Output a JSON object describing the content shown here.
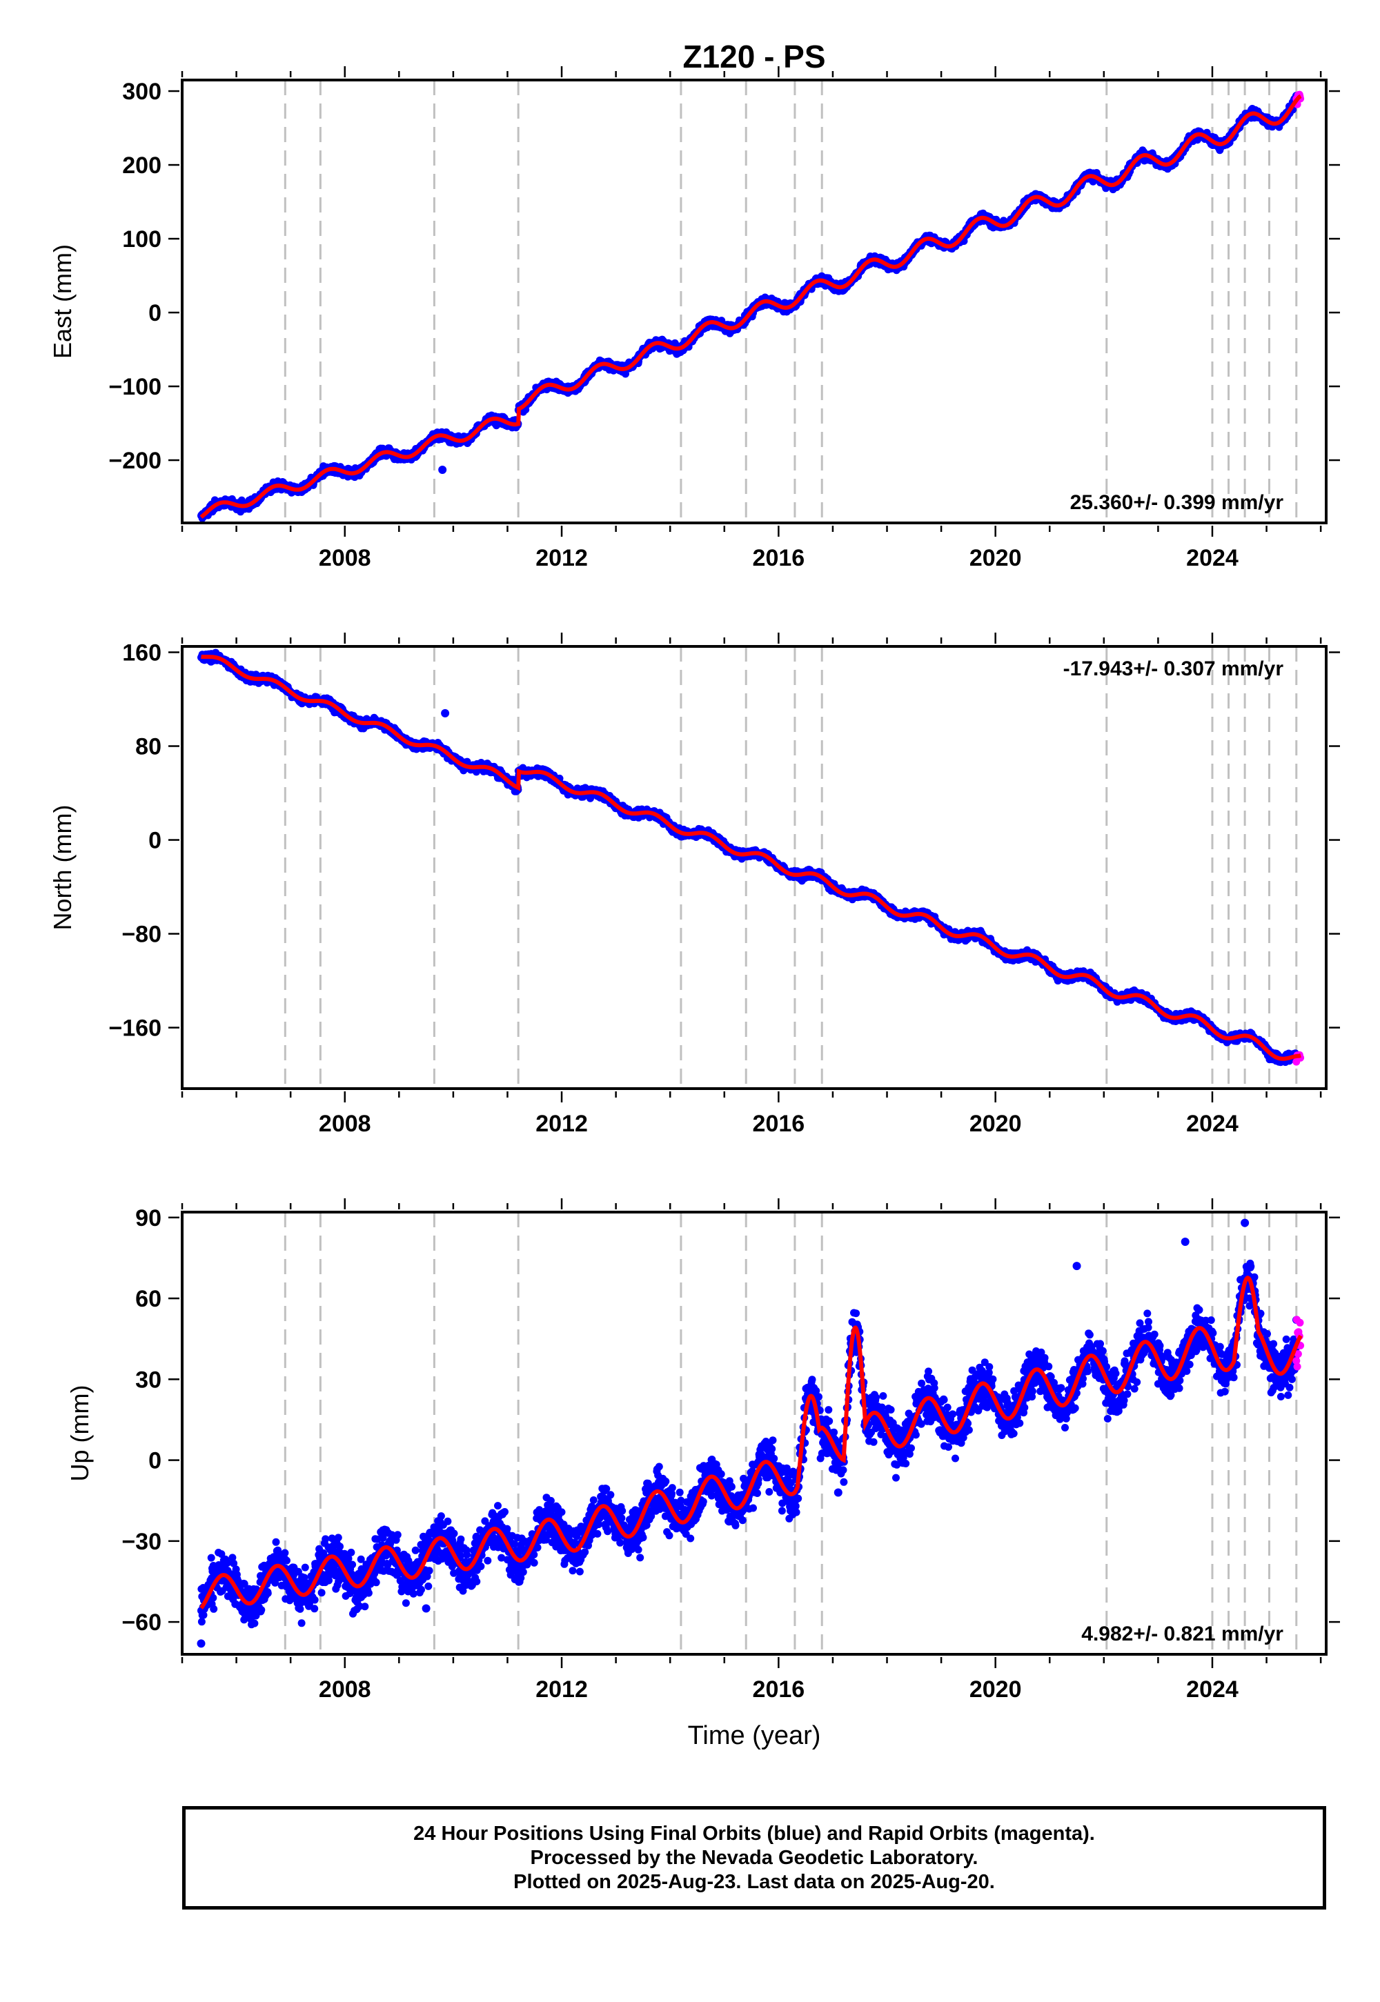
{
  "title": "Z120 - PS",
  "footer": {
    "lines": [
      "24 Hour Positions Using Final Orbits (blue) and Rapid Orbits (magenta).",
      "Processed by the Nevada Geodetic Laboratory.",
      "Plotted on 2025-Aug-23. Last data on 2025-Aug-20."
    ]
  },
  "colors": {
    "final": "#0000ff",
    "rapid": "#ff00ff",
    "fit": "#ff0000",
    "event_lines": "#c0c0c0"
  },
  "chart_data": [
    {
      "type": "scatter",
      "ylabel": "East (mm)",
      "xlabel": "",
      "xlim": [
        2005.0,
        2026.1
      ],
      "ylim": [
        -285,
        315
      ],
      "yticks": [
        -200,
        -100,
        0,
        100,
        200,
        300
      ],
      "xticks": [
        2008,
        2012,
        2016,
        2020,
        2024
      ],
      "rate": "25.360+/- 0.399 mm/yr",
      "rate_position": "bottom-right",
      "trend": [
        [
          2005.35,
          -273
        ],
        [
          2011.2,
          -142
        ],
        [
          2011.2,
          -122
        ],
        [
          2025.6,
          281
        ]
      ],
      "trend_rate": 25.36,
      "step": {
        "t": 2011.2,
        "size": 20
      },
      "annual_amp": 7,
      "annual_grow": 0.45,
      "annual_phase": 0.45,
      "noise": 4,
      "outliers": [
        [
          2009.8,
          -213
        ]
      ]
    },
    {
      "type": "scatter",
      "ylabel": "North (mm)",
      "xlabel": "",
      "xlim": [
        2005.0,
        2026.1
      ],
      "ylim": [
        -212,
        165
      ],
      "yticks": [
        -160,
        -80,
        0,
        80,
        160
      ],
      "xticks": [
        2008,
        2012,
        2016,
        2020,
        2024
      ],
      "rate": "-17.943+/- 0.307 mm/yr",
      "rate_position": "top-right",
      "trend": [
        [
          2005.35,
          158
        ],
        [
          2011.2,
          48
        ],
        [
          2011.2,
          62
        ],
        [
          2025.6,
          -188
        ]
      ],
      "trend_rate": -17.943,
      "step": {
        "t": 2011.2,
        "size": 14
      },
      "annual_amp": 3,
      "annual_grow": 0.28,
      "annual_phase": 0.45,
      "noise": 2.5,
      "outliers": [
        [
          2009.85,
          108
        ]
      ]
    },
    {
      "type": "scatter",
      "ylabel": "Up (mm)",
      "xlabel": "Time (year)",
      "xlim": [
        2005.0,
        2026.1
      ],
      "ylim": [
        -72,
        92
      ],
      "yticks": [
        -60,
        -30,
        0,
        30,
        60,
        90
      ],
      "xticks": [
        2008,
        2012,
        2016,
        2020,
        2024
      ],
      "rate": "4.982+/- 0.821 mm/yr",
      "rate_position": "bottom-right",
      "trend": [
        [
          2005.35,
          -50
        ],
        [
          2012.0,
          -28
        ],
        [
          2016.3,
          -5
        ],
        [
          2016.8,
          5
        ],
        [
          2020.0,
          22
        ],
        [
          2024.0,
          42
        ],
        [
          2025.6,
          40
        ]
      ],
      "trend_rate": 4.982,
      "annual_amp": 6,
      "annual_grow": 0.2,
      "annual_phase": 0.5,
      "noise": 6,
      "excursions": [
        [
          2016.35,
          2016.75,
          20
        ],
        [
          2017.2,
          2017.6,
          45
        ],
        [
          2024.4,
          2024.85,
          20
        ]
      ],
      "outliers": [
        [
          2023.5,
          81
        ],
        [
          2024.6,
          88
        ],
        [
          2021.5,
          72
        ],
        [
          2009.5,
          -55
        ],
        [
          2005.35,
          -68
        ],
        [
          2017.1,
          -12
        ]
      ]
    }
  ],
  "events": [
    2006.9,
    2007.55,
    2009.65,
    2011.2,
    2014.2,
    2015.4,
    2016.3,
    2016.8,
    2022.05,
    2024.0,
    2024.3,
    2024.6,
    2025.05,
    2025.55
  ],
  "rapid_segment": [
    2025.55,
    2025.63
  ],
  "data_start": 2005.35,
  "data_end": 2025.63
}
